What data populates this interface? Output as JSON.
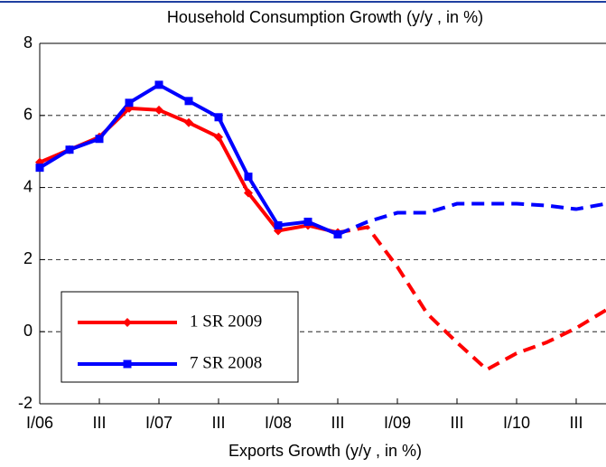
{
  "chart_data": {
    "type": "line",
    "title": "Household Consumption Growth (y/y , in %)",
    "x_label": "Exports Growth (y/y , in %)",
    "categories": [
      "I/06",
      null,
      "III",
      null,
      "I/07",
      null,
      "III",
      null,
      "I/08",
      null,
      "III",
      null,
      "I/09",
      null,
      "III",
      null,
      "I/10",
      null,
      "III",
      null
    ],
    "ylim": [
      -2,
      8
    ],
    "yticks": [
      -2,
      0,
      2,
      4,
      6,
      8
    ],
    "grid": true,
    "legend": "lower left",
    "series": [
      {
        "name": "1 SR 2009",
        "color": "#ff0000",
        "values": [
          4.7,
          5.05,
          5.4,
          6.2,
          6.15,
          5.8,
          5.4,
          3.85,
          2.8,
          2.95,
          2.75,
          null,
          null,
          null,
          null,
          null,
          null,
          null,
          null,
          null
        ],
        "projection": [
          null,
          null,
          null,
          null,
          null,
          null,
          null,
          null,
          null,
          null,
          2.75,
          2.9,
          1.8,
          0.5,
          -0.3,
          -1.05,
          -0.6,
          -0.3,
          0.1,
          0.6
        ]
      },
      {
        "name": "7 SR 2008",
        "color": "#0000ff",
        "values": [
          4.55,
          5.05,
          5.35,
          6.35,
          6.85,
          6.4,
          5.95,
          4.3,
          2.95,
          3.05,
          2.7,
          null,
          null,
          null,
          null,
          null,
          null,
          null,
          null,
          null
        ],
        "projection": [
          null,
          null,
          null,
          null,
          null,
          null,
          null,
          null,
          null,
          null,
          2.7,
          3.05,
          3.3,
          3.3,
          3.55,
          3.55,
          3.55,
          3.5,
          3.4,
          3.55
        ]
      }
    ]
  }
}
